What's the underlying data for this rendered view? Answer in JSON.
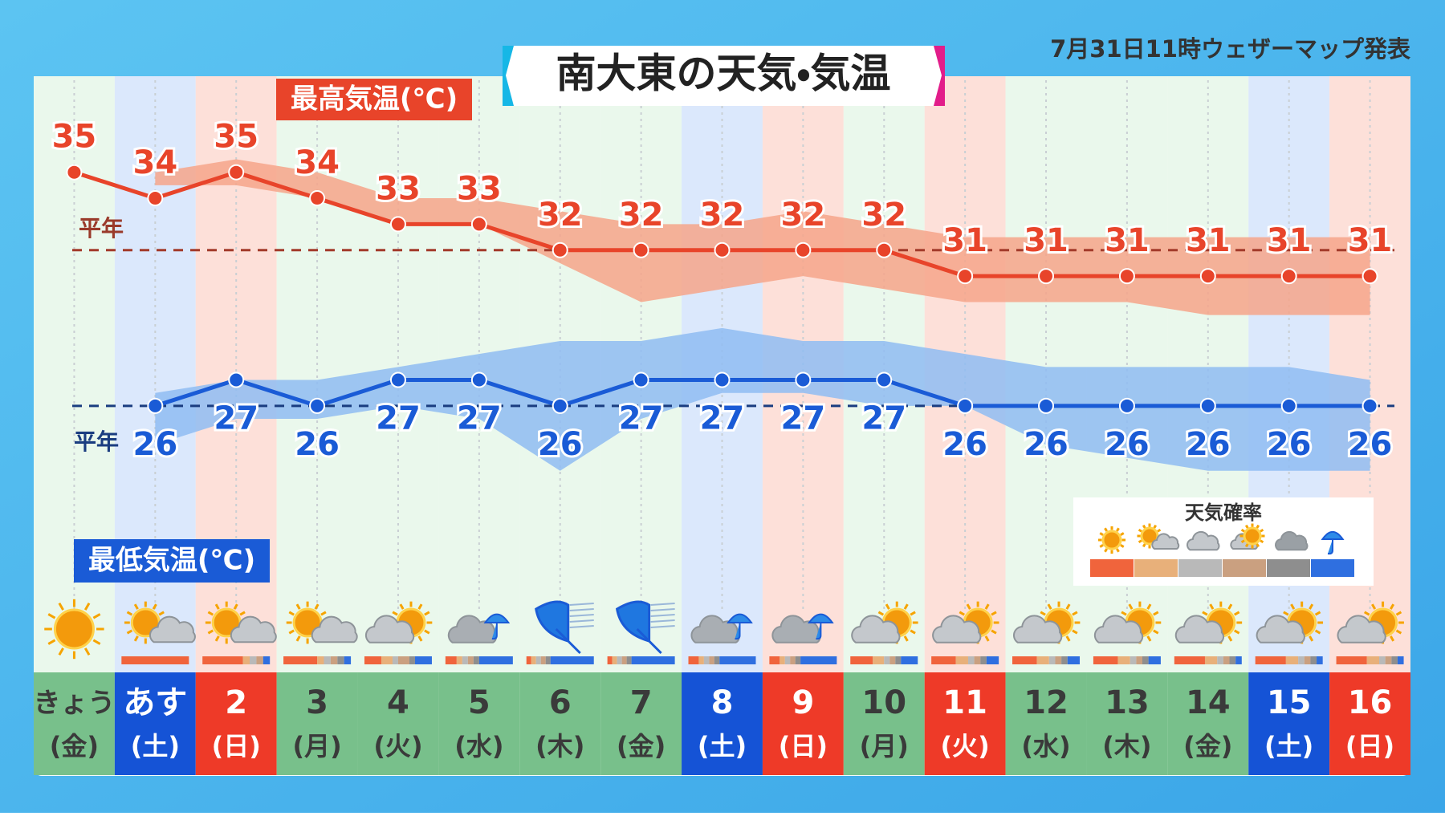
{
  "chart_data": {
    "type": "line",
    "title": "南大東の天気・気温",
    "subtitle": "7月31日11時ウェザーマップ発表",
    "legend_title": "天気確率",
    "categories": [
      "きょう",
      "あす",
      "2",
      "3",
      "4",
      "5",
      "6",
      "7",
      "8",
      "9",
      "10",
      "11",
      "12",
      "13",
      "14",
      "15",
      "16"
    ],
    "weekdays": [
      "(金)",
      "(土)",
      "(日)",
      "(月)",
      "(火)",
      "(水)",
      "(木)",
      "(金)",
      "(土)",
      "(日)",
      "(月)",
      "(火)",
      "(水)",
      "(木)",
      "(金)",
      "(土)",
      "(日)"
    ],
    "ylim": [
      20,
      37
    ],
    "series": [
      {
        "name": "最高気温(℃)",
        "color": "#e8442a",
        "band_color": "#f6a48a",
        "values": [
          35,
          34,
          35,
          34,
          33,
          33,
          32,
          32,
          32,
          32,
          32,
          31,
          31,
          31,
          31,
          31,
          31
        ],
        "band_high": [
          null,
          35,
          35.5,
          35,
          34,
          34,
          33.5,
          33,
          33,
          33.5,
          33,
          32.5,
          32.5,
          32.5,
          32.5,
          32.5,
          32.5
        ],
        "band_low": [
          null,
          34.5,
          34.5,
          34,
          33,
          33,
          31.5,
          30,
          30.5,
          31,
          30.5,
          30,
          30,
          30,
          29.5,
          29.5,
          29.5
        ],
        "normal": 32,
        "normal_label": "平年"
      },
      {
        "name": "最低気温(℃)",
        "color": "#1a5bd6",
        "band_color": "#8fbcf2",
        "values": [
          null,
          26,
          27,
          26,
          27,
          27,
          26,
          27,
          27,
          27,
          27,
          26,
          26,
          26,
          26,
          26,
          26
        ],
        "band_high": [
          null,
          26.5,
          27,
          27,
          27.5,
          28,
          28.5,
          28.5,
          29,
          28.5,
          28.5,
          28,
          27.5,
          27.5,
          27.5,
          27.5,
          27
        ],
        "band_low": [
          null,
          24.5,
          25.5,
          25.5,
          26,
          25.5,
          23.5,
          25.5,
          26.5,
          26.5,
          26,
          26,
          24.5,
          24,
          23.5,
          23.5,
          23.5
        ],
        "normal": 26,
        "normal_label": "平年"
      }
    ]
  }
}
